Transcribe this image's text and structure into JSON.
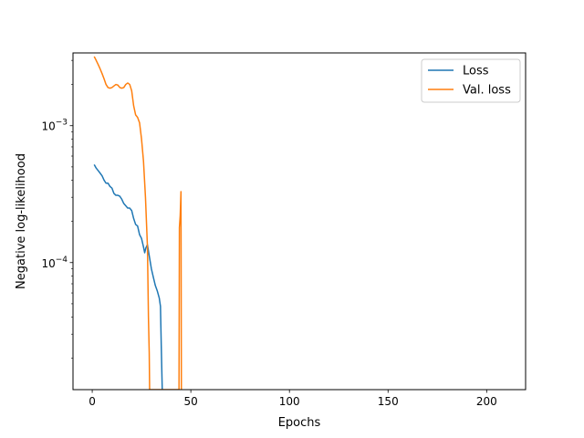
{
  "chart_data": {
    "type": "line",
    "title": "",
    "xlabel": "Epochs",
    "ylabel": "Negative log-likelihood",
    "x_ticks": [
      0,
      50,
      100,
      150,
      200
    ],
    "y_ticks": [
      {
        "value": 0.001,
        "base": "10",
        "exp": "−3"
      },
      {
        "value": 0.0001,
        "base": "10",
        "exp": "−4"
      }
    ],
    "xlim": [
      -9.75,
      219.75
    ],
    "ylim": [
      1.18e-05,
      0.0034
    ],
    "y_scale": "log",
    "grid": false,
    "legend_position": "top-right",
    "series": [
      {
        "name": "Loss",
        "color": "#1f77b4",
        "points": [
          [
            1,
            0.00052
          ],
          [
            2,
            0.00049
          ],
          [
            3,
            0.00047
          ],
          [
            4,
            0.00045
          ],
          [
            5,
            0.00043
          ],
          [
            6,
            0.0004
          ],
          [
            7,
            0.00038
          ],
          [
            8,
            0.00038
          ],
          [
            9,
            0.00036
          ],
          [
            10,
            0.00035
          ],
          [
            11,
            0.00032
          ],
          [
            12,
            0.00031
          ],
          [
            13,
            0.00031
          ],
          [
            14,
            0.000305
          ],
          [
            15,
            0.00029
          ],
          [
            16,
            0.00027
          ],
          [
            17,
            0.00026
          ],
          [
            18,
            0.00025
          ],
          [
            19,
            0.00025
          ],
          [
            20,
            0.00024
          ],
          [
            21,
            0.00021
          ],
          [
            22,
            0.00019
          ],
          [
            23,
            0.000185
          ],
          [
            24,
            0.00016
          ],
          [
            25,
            0.00015
          ],
          [
            26,
            0.00013
          ],
          [
            26.6,
            0.000118
          ],
          [
            27.2,
            0.000128
          ],
          [
            28,
            0.000135
          ],
          [
            29,
            0.00011
          ],
          [
            30,
            9e-05
          ],
          [
            31,
            7.8e-05
          ],
          [
            32,
            6.8e-05
          ],
          [
            33,
            6.2e-05
          ],
          [
            34,
            5.5e-05
          ],
          [
            34.6,
            4.8e-05
          ],
          [
            35,
            2.5e-05
          ],
          [
            35.5,
            1.18e-05
          ]
        ]
      },
      {
        "name": "Val. loss",
        "color": "#ff7f0e",
        "points": [
          [
            1,
            0.0032
          ],
          [
            2,
            0.003
          ],
          [
            3,
            0.0028
          ],
          [
            4,
            0.0026
          ],
          [
            5,
            0.0024
          ],
          [
            6,
            0.0022
          ],
          [
            7,
            0.002
          ],
          [
            8,
            0.0019
          ],
          [
            9,
            0.00188
          ],
          [
            10,
            0.0019
          ],
          [
            11,
            0.00195
          ],
          [
            12,
            0.002
          ],
          [
            13,
            0.00198
          ],
          [
            14,
            0.0019
          ],
          [
            15,
            0.00188
          ],
          [
            16,
            0.0019
          ],
          [
            17,
            0.002
          ],
          [
            18,
            0.00205
          ],
          [
            19,
            0.002
          ],
          [
            20,
            0.0018
          ],
          [
            21,
            0.0014
          ],
          [
            22,
            0.0012
          ],
          [
            23,
            0.00115
          ],
          [
            24,
            0.00105
          ],
          [
            25,
            0.0008
          ],
          [
            26,
            0.00055
          ],
          [
            27,
            0.0003
          ],
          [
            28,
            0.00013
          ],
          [
            28.5,
            4e-05
          ],
          [
            28.9,
            2.2e-05
          ],
          [
            29.1,
            1.18e-05
          ],
          [
            44,
            1.18e-05
          ],
          [
            44.2,
            0.00018
          ],
          [
            44.6,
            0.00022
          ],
          [
            45,
            0.00033
          ],
          [
            45.2,
            1.18e-05
          ]
        ]
      }
    ]
  }
}
